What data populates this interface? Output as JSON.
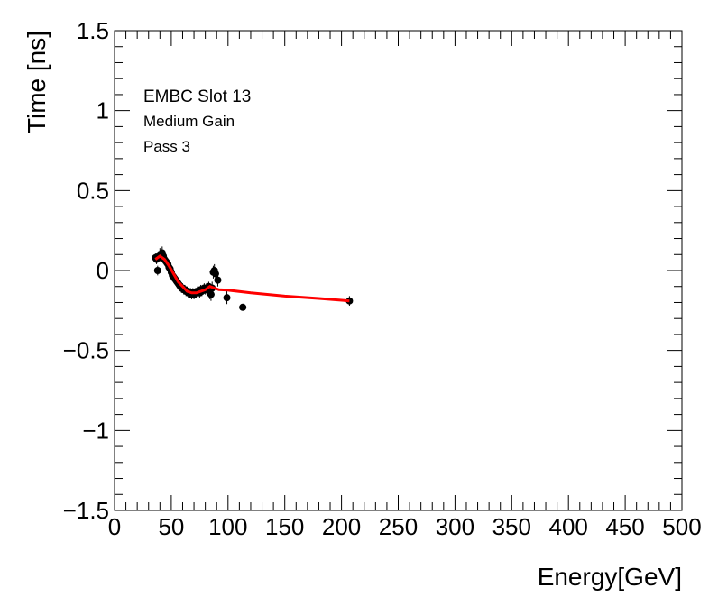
{
  "chart_data": {
    "type": "scatter",
    "xlabel": "Energy[GeV]",
    "ylabel": "Time [ns]",
    "xlim": [
      0,
      500
    ],
    "ylim": [
      -1.5,
      1.5
    ],
    "x_ticks": [
      0,
      50,
      100,
      150,
      200,
      250,
      300,
      350,
      400,
      450,
      500
    ],
    "x_tick_labels": [
      "0",
      "50",
      "100",
      "150",
      "200",
      "250",
      "300",
      "350",
      "400",
      "450",
      "500"
    ],
    "y_ticks": [
      -1.5,
      -1,
      -0.5,
      0,
      0.5,
      1,
      1.5
    ],
    "y_tick_labels": [
      "−1.5",
      "−1",
      "−0.5",
      "0",
      "0.5",
      "1",
      "1.5"
    ],
    "grid": false,
    "annotations": [
      "EMBC Slot 13",
      "Medium Gain",
      "Pass 3"
    ],
    "points": [
      {
        "x": 36,
        "y": 0.08,
        "err": 0.03
      },
      {
        "x": 37,
        "y": 0.07,
        "err": 0.03
      },
      {
        "x": 38,
        "y": 0.0,
        "err": 0.03
      },
      {
        "x": 39,
        "y": 0.09,
        "err": 0.03
      },
      {
        "x": 40,
        "y": 0.1,
        "err": 0.04
      },
      {
        "x": 41,
        "y": 0.08,
        "err": 0.03
      },
      {
        "x": 42,
        "y": 0.11,
        "err": 0.04
      },
      {
        "x": 43,
        "y": 0.09,
        "err": 0.03
      },
      {
        "x": 44,
        "y": 0.07,
        "err": 0.03
      },
      {
        "x": 45,
        "y": 0.06,
        "err": 0.03
      },
      {
        "x": 46,
        "y": 0.05,
        "err": 0.03
      },
      {
        "x": 47,
        "y": 0.04,
        "err": 0.03
      },
      {
        "x": 48,
        "y": 0.02,
        "err": 0.03
      },
      {
        "x": 49,
        "y": 0.01,
        "err": 0.03
      },
      {
        "x": 50,
        "y": -0.01,
        "err": 0.03
      },
      {
        "x": 51,
        "y": -0.03,
        "err": 0.03
      },
      {
        "x": 52,
        "y": -0.04,
        "err": 0.03
      },
      {
        "x": 53,
        "y": -0.05,
        "err": 0.03
      },
      {
        "x": 54,
        "y": -0.06,
        "err": 0.03
      },
      {
        "x": 55,
        "y": -0.07,
        "err": 0.03
      },
      {
        "x": 56,
        "y": -0.08,
        "err": 0.03
      },
      {
        "x": 57,
        "y": -0.09,
        "err": 0.03
      },
      {
        "x": 58,
        "y": -0.1,
        "err": 0.03
      },
      {
        "x": 59,
        "y": -0.11,
        "err": 0.03
      },
      {
        "x": 60,
        "y": -0.11,
        "err": 0.03
      },
      {
        "x": 61,
        "y": -0.12,
        "err": 0.03
      },
      {
        "x": 62,
        "y": -0.12,
        "err": 0.03
      },
      {
        "x": 63,
        "y": -0.13,
        "err": 0.03
      },
      {
        "x": 64,
        "y": -0.13,
        "err": 0.03
      },
      {
        "x": 65,
        "y": -0.14,
        "err": 0.03
      },
      {
        "x": 66,
        "y": -0.14,
        "err": 0.03
      },
      {
        "x": 67,
        "y": -0.14,
        "err": 0.03
      },
      {
        "x": 68,
        "y": -0.15,
        "err": 0.03
      },
      {
        "x": 69,
        "y": -0.14,
        "err": 0.03
      },
      {
        "x": 70,
        "y": -0.15,
        "err": 0.03
      },
      {
        "x": 71,
        "y": -0.14,
        "err": 0.03
      },
      {
        "x": 72,
        "y": -0.14,
        "err": 0.03
      },
      {
        "x": 73,
        "y": -0.13,
        "err": 0.03
      },
      {
        "x": 74,
        "y": -0.13,
        "err": 0.03
      },
      {
        "x": 75,
        "y": -0.14,
        "err": 0.03
      },
      {
        "x": 76,
        "y": -0.12,
        "err": 0.03
      },
      {
        "x": 77,
        "y": -0.13,
        "err": 0.03
      },
      {
        "x": 78,
        "y": -0.12,
        "err": 0.03
      },
      {
        "x": 79,
        "y": -0.11,
        "err": 0.03
      },
      {
        "x": 80,
        "y": -0.12,
        "err": 0.03
      },
      {
        "x": 81,
        "y": -0.11,
        "err": 0.03
      },
      {
        "x": 82,
        "y": -0.12,
        "err": 0.03
      },
      {
        "x": 83,
        "y": -0.1,
        "err": 0.03
      },
      {
        "x": 84,
        "y": -0.14,
        "err": 0.04
      },
      {
        "x": 85,
        "y": -0.15,
        "err": 0.04
      },
      {
        "x": 86,
        "y": -0.11,
        "err": 0.04
      },
      {
        "x": 87,
        "y": -0.01,
        "err": 0.04
      },
      {
        "x": 88,
        "y": 0.0,
        "err": 0.04
      },
      {
        "x": 89,
        "y": -0.02,
        "err": 0.04
      },
      {
        "x": 91,
        "y": -0.06,
        "err": 0.04
      },
      {
        "x": 99,
        "y": -0.17,
        "err": 0.04
      },
      {
        "x": 113,
        "y": -0.23,
        "err": 0.02
      },
      {
        "x": 207,
        "y": -0.19,
        "err": 0.03
      }
    ],
    "fit_curve": {
      "color": "#ff0000",
      "x": [
        36,
        40,
        44,
        48,
        52,
        56,
        60,
        64,
        68,
        72,
        76,
        80,
        84,
        88,
        92,
        100,
        120,
        150,
        180,
        207
      ],
      "y": [
        0.07,
        0.09,
        0.07,
        0.03,
        -0.02,
        -0.07,
        -0.1,
        -0.13,
        -0.14,
        -0.14,
        -0.13,
        -0.12,
        -0.1,
        -0.11,
        -0.12,
        -0.123,
        -0.14,
        -0.16,
        -0.175,
        -0.19
      ]
    }
  }
}
